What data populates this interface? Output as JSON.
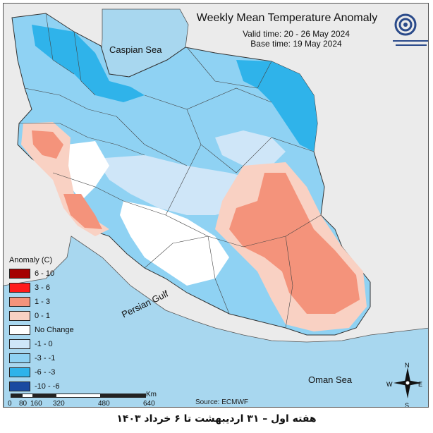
{
  "header": {
    "title": "Weekly Mean Temperature Anomaly",
    "valid_time": "Valid time: 20 - 26 May 2024",
    "base_time": "Base time: 19 May 2024"
  },
  "labels": {
    "caspian": "Caspian Sea",
    "persian_gulf": "Persian Gulf",
    "oman_sea": "Oman Sea",
    "source": "Source: ECMWF",
    "km": "Km",
    "north": "N",
    "south": "S",
    "east": "E",
    "west": "W"
  },
  "legend": {
    "title": "Anomaly (C)",
    "items": [
      {
        "label": "6 - 10",
        "color": "#a50000"
      },
      {
        "label": "3 - 6",
        "color": "#ff1a1a"
      },
      {
        "label": "1 - 3",
        "color": "#f4937b"
      },
      {
        "label": "0 - 1",
        "color": "#f9d1c3"
      },
      {
        "label": "No Change",
        "color": "#ffffff"
      },
      {
        "label": "-1 - 0",
        "color": "#cfe6f8"
      },
      {
        "label": "-3 - -1",
        "color": "#8fd2f3"
      },
      {
        "label": "-6 - -3",
        "color": "#2fb3ea"
      },
      {
        "label": "-10 - -6",
        "color": "#1a4aa0"
      }
    ]
  },
  "scale_ticks": [
    "0",
    "80",
    "160",
    "320",
    "480",
    "640"
  ],
  "caption": "هفته اول – ۳۱ اردیبهشت تا ۶ خرداد ۱۴۰۳",
  "colors": {
    "sea": "#a8d7ef",
    "outside": "#e9e9e9",
    "land_cool": "#8fd2f3",
    "land_cold": "#2fb3ea",
    "land_slight": "#cfe6f8",
    "warm": "#f4937b",
    "warm_slight": "#f9d1c3"
  }
}
